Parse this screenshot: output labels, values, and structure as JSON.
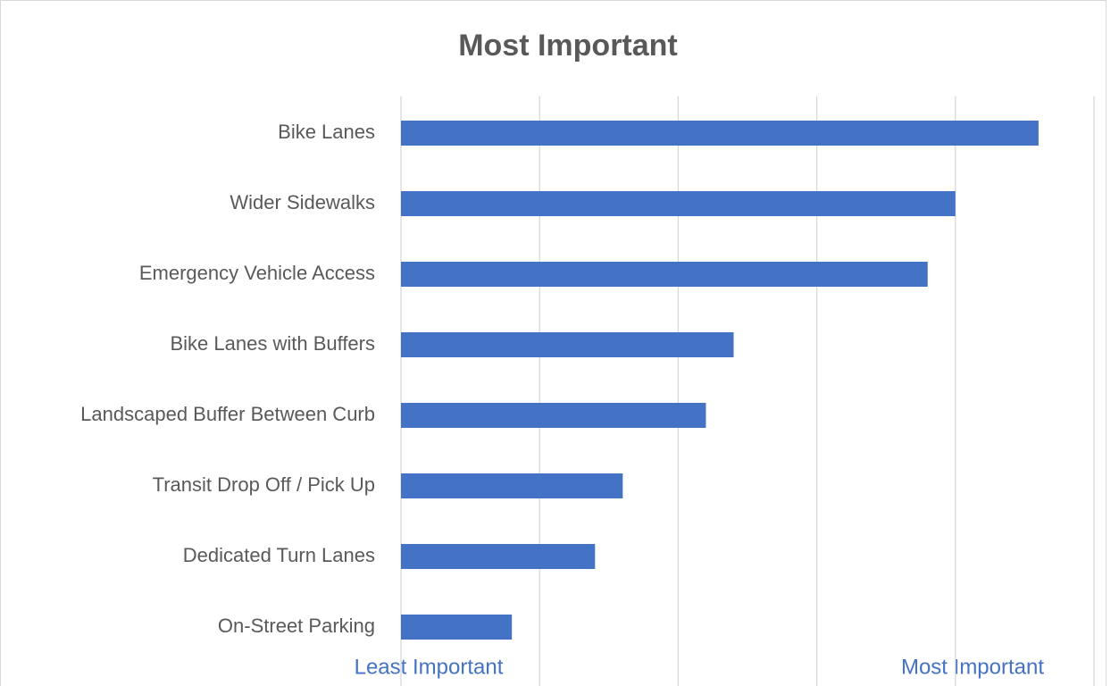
{
  "chart_data": {
    "type": "barh",
    "title": "Most Important",
    "categories": [
      "Bike Lanes",
      "Wider Sidewalks",
      "Emergency Vehicle Access",
      "Bike Lanes with Buffers",
      "Landscaped Buffer Between Curb",
      "Transit Drop Off / Pick Up",
      "Dedicated Turn Lanes",
      "On-Street Parking"
    ],
    "values": [
      4.6,
      4.0,
      3.8,
      2.4,
      2.2,
      1.6,
      1.4,
      0.8
    ],
    "color": "#4472c4",
    "xlim": [
      0,
      5
    ],
    "xticks": [
      0,
      1,
      2,
      3,
      4,
      5
    ],
    "grid": true,
    "xlabel_left": "Least Important",
    "xlabel_right": "Most Important"
  }
}
